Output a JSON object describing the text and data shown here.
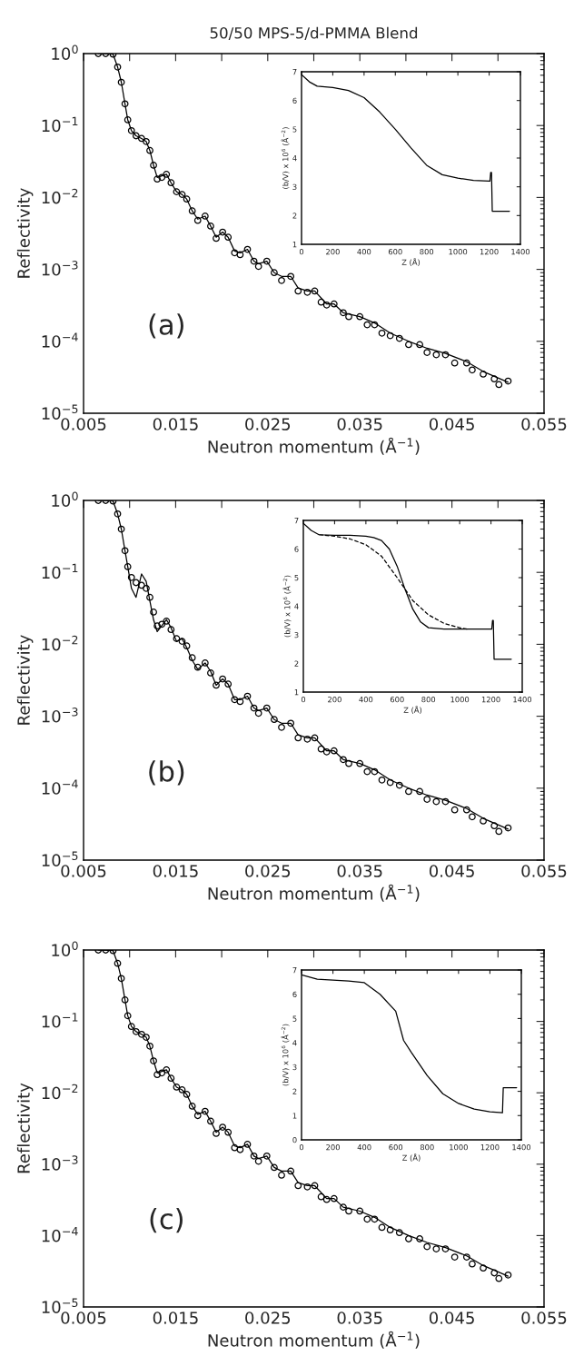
{
  "chart_data": [
    {
      "type": "scatter",
      "title": "50/50 MPS-5/d-PMMA Blend",
      "xlabel": "Neutron momentum (Å$^{−1}$)",
      "ylabel": "Reflectivity",
      "log": "y",
      "xlim": [
        0.005,
        0.055
      ],
      "ylim": [
        1e-05,
        1
      ],
      "xticks": [
        0.005,
        {
          "value": 0.01,
          "label": null
        },
        0.015,
        {
          "value": 0.02,
          "label": null
        },
        0.025,
        {
          "value": 0.03,
          "label": null
        },
        0.035,
        {
          "value": 0.04,
          "label": null
        },
        0.045,
        {
          "value": 0.05,
          "label": null
        },
        0.055
      ],
      "yticks": [
        {
          "value": 1e-05,
          "label": "10$^{−5}$"
        },
        {
          "value": 0.0001,
          "label": "10$^{−4}$"
        },
        {
          "value": 0.001,
          "label": "10$^{−3}$"
        },
        {
          "value": 0.01,
          "label": "10$^{−2}$"
        },
        {
          "value": 0.1,
          "label": "10$^{−1}$"
        },
        {
          "value": 1,
          "label": "10$^{0}$"
        }
      ],
      "annotations": [
        "(a)"
      ],
      "series": [
        {
          "color": "#000000",
          "marker": "circle",
          "x": [
            0.0066,
            0.0074,
            0.0082,
            0.0087,
            0.0091,
            0.0095,
            0.0098,
            0.0102,
            0.0107,
            0.0113,
            0.0118,
            0.0122,
            0.0126,
            0.013,
            0.0135,
            0.014,
            0.0145,
            0.0151,
            0.0157,
            0.0162,
            0.0168,
            0.0174,
            0.0182,
            0.0188,
            0.0194,
            0.0201,
            0.0207,
            0.0214,
            0.022,
            0.0228,
            0.0235,
            0.024,
            0.0249,
            0.0257,
            0.0265,
            0.0275,
            0.0283,
            0.0293,
            0.0301,
            0.0308,
            0.0314,
            0.0322,
            0.0332,
            0.0338,
            0.035,
            0.0358,
            0.0366,
            0.0374,
            0.0383,
            0.0393,
            0.0403,
            0.0415,
            0.0423,
            0.0433,
            0.0443,
            0.0453,
            0.0466,
            0.0472,
            0.0484,
            0.0496,
            0.0501,
            0.0511
          ],
          "values": [
            1.0,
            1.0,
            0.98,
            0.65,
            0.4,
            0.2,
            0.12,
            0.085,
            0.072,
            0.066,
            0.06,
            0.045,
            0.028,
            0.018,
            0.019,
            0.021,
            0.016,
            0.012,
            0.011,
            0.0095,
            0.0065,
            0.0048,
            0.0055,
            0.004,
            0.0027,
            0.0033,
            0.0028,
            0.0017,
            0.0016,
            0.0019,
            0.0013,
            0.0011,
            0.0013,
            0.0009,
            0.0007,
            0.0008,
            0.0005,
            0.00048,
            0.0005,
            0.00035,
            0.00032,
            0.00033,
            0.00025,
            0.00022,
            0.00022,
            0.00017,
            0.00017,
            0.00013,
            0.00012,
            0.00011,
            9e-05,
            9e-05,
            7e-05,
            6.5e-05,
            6.5e-05,
            5e-05,
            5e-05,
            4e-05,
            3.5e-05,
            3e-05,
            2.5e-05,
            2.8e-05
          ]
        },
        {
          "type": "line",
          "color": "#000000",
          "line_style": "solid",
          "x": [
            0.0066,
            0.0082,
            0.0087,
            0.0091,
            0.0095,
            0.0098,
            0.0102,
            0.0107,
            0.0113,
            0.0118,
            0.0122,
            0.0126,
            0.013,
            0.014,
            0.0145,
            0.0151,
            0.0157,
            0.0162,
            0.0168,
            0.0174,
            0.0182,
            0.0188,
            0.0194,
            0.0201,
            0.0207,
            0.0214,
            0.022,
            0.0228,
            0.0235,
            0.024,
            0.0249,
            0.0257,
            0.0265,
            0.0275,
            0.0283,
            0.0293,
            0.0301,
            0.0314,
            0.0322,
            0.0332,
            0.035,
            0.0366,
            0.0383,
            0.0403,
            0.0423,
            0.0443,
            0.0466,
            0.0484,
            0.0511
          ],
          "values": [
            1.0,
            0.98,
            0.65,
            0.4,
            0.2,
            0.12,
            0.085,
            0.072,
            0.066,
            0.06,
            0.045,
            0.028,
            0.019,
            0.021,
            0.016,
            0.012,
            0.011,
            0.0095,
            0.0065,
            0.005,
            0.0055,
            0.004,
            0.0028,
            0.0033,
            0.0028,
            0.0018,
            0.0017,
            0.0019,
            0.0013,
            0.0012,
            0.0013,
            0.0009,
            0.0008,
            0.0008,
            0.00055,
            0.0005,
            0.0005,
            0.00033,
            0.00033,
            0.00025,
            0.00022,
            0.00018,
            0.00013,
            0.0001,
            8e-05,
            6.8e-05,
            5.2e-05,
            3.8e-05,
            2.7e-05
          ]
        }
      ]
    },
    {
      "type": "line",
      "xlabel": "Z (Å)",
      "ylabel": "(b/V) x 10$^{6}$ (Å$^{−2}$)",
      "xlim": [
        0,
        1400
      ],
      "ylim": [
        1,
        7
      ],
      "xticks": [
        0,
        200,
        400,
        600,
        800,
        1000,
        1200,
        1400
      ],
      "yticks": [
        1,
        2,
        3,
        4,
        5,
        6,
        7
      ],
      "series": [
        {
          "color": "#000000",
          "line_style": "solid",
          "x": [
            0,
            50,
            100,
            200,
            300,
            400,
            500,
            600,
            700,
            800,
            900,
            1000,
            1100,
            1200,
            1205,
            1210,
            1215,
            1220,
            1330
          ],
          "values": [
            6.9,
            6.65,
            6.5,
            6.45,
            6.35,
            6.1,
            5.6,
            5.0,
            4.35,
            3.75,
            3.42,
            3.3,
            3.22,
            3.2,
            3.2,
            3.5,
            3.5,
            2.15,
            2.15
          ]
        }
      ]
    },
    {
      "type": "scatter",
      "xlabel": "Neutron momentum (Å$^{−1}$)",
      "ylabel": "Reflectivity",
      "log": "y",
      "xlim": [
        0.005,
        0.055
      ],
      "ylim": [
        1e-05,
        1
      ],
      "xticks": [
        0.005,
        {
          "value": 0.01,
          "label": null
        },
        0.015,
        {
          "value": 0.02,
          "label": null
        },
        0.025,
        {
          "value": 0.03,
          "label": null
        },
        0.035,
        {
          "value": 0.04,
          "label": null
        },
        0.045,
        {
          "value": 0.05,
          "label": null
        },
        0.055
      ],
      "yticks": [
        {
          "value": 1e-05,
          "label": "10$^{−5}$"
        },
        {
          "value": 0.0001,
          "label": "10$^{−4}$"
        },
        {
          "value": 0.001,
          "label": "10$^{−3}$"
        },
        {
          "value": 0.01,
          "label": "10$^{−2}$"
        },
        {
          "value": 0.1,
          "label": "10$^{−1}$"
        },
        {
          "value": 1,
          "label": "10$^{0}$"
        }
      ],
      "annotations": [
        "(b)"
      ],
      "series": [
        {
          "color": "#000000",
          "marker": "circle",
          "x": [
            0.0066,
            0.0074,
            0.0082,
            0.0087,
            0.0091,
            0.0095,
            0.0098,
            0.0102,
            0.0107,
            0.0113,
            0.0118,
            0.0122,
            0.0126,
            0.013,
            0.0135,
            0.014,
            0.0145,
            0.0151,
            0.0157,
            0.0162,
            0.0168,
            0.0174,
            0.0182,
            0.0188,
            0.0194,
            0.0201,
            0.0207,
            0.0214,
            0.022,
            0.0228,
            0.0235,
            0.024,
            0.0249,
            0.0257,
            0.0265,
            0.0275,
            0.0283,
            0.0293,
            0.0301,
            0.0308,
            0.0314,
            0.0322,
            0.0332,
            0.0338,
            0.035,
            0.0358,
            0.0366,
            0.0374,
            0.0383,
            0.0393,
            0.0403,
            0.0415,
            0.0423,
            0.0433,
            0.0443,
            0.0453,
            0.0466,
            0.0472,
            0.0484,
            0.0496,
            0.0501,
            0.0511
          ],
          "values": [
            1.0,
            1.0,
            0.98,
            0.65,
            0.4,
            0.2,
            0.12,
            0.085,
            0.072,
            0.066,
            0.06,
            0.045,
            0.028,
            0.018,
            0.019,
            0.021,
            0.016,
            0.012,
            0.011,
            0.0095,
            0.0065,
            0.0048,
            0.0055,
            0.004,
            0.0027,
            0.0033,
            0.0028,
            0.0017,
            0.0016,
            0.0019,
            0.0013,
            0.0011,
            0.0013,
            0.0009,
            0.0007,
            0.0008,
            0.0005,
            0.00048,
            0.0005,
            0.00035,
            0.00032,
            0.00033,
            0.00025,
            0.00022,
            0.00022,
            0.00017,
            0.00017,
            0.00013,
            0.00012,
            0.00011,
            9e-05,
            9e-05,
            7e-05,
            6.5e-05,
            6.5e-05,
            5e-05,
            5e-05,
            4e-05,
            3.5e-05,
            3e-05,
            2.5e-05,
            2.8e-05
          ]
        },
        {
          "type": "line",
          "color": "#000000",
          "line_style": "solid",
          "x": [
            0.0066,
            0.0082,
            0.0087,
            0.0091,
            0.0095,
            0.0098,
            0.0102,
            0.0107,
            0.0113,
            0.0118,
            0.0122,
            0.0126,
            0.013,
            0.014,
            0.0145,
            0.0151,
            0.0157,
            0.0162,
            0.0168,
            0.0174,
            0.0182,
            0.0188,
            0.0194,
            0.0201,
            0.0207,
            0.0214,
            0.022,
            0.0228,
            0.0235,
            0.024,
            0.0249,
            0.0257,
            0.0265,
            0.0275,
            0.0283,
            0.0293,
            0.0301,
            0.0314,
            0.0322,
            0.0332,
            0.035,
            0.0366,
            0.0383,
            0.0403,
            0.0423,
            0.0443,
            0.0466,
            0.0484,
            0.0511
          ],
          "values": [
            1.0,
            0.98,
            0.65,
            0.4,
            0.2,
            0.12,
            0.06,
            0.045,
            0.095,
            0.075,
            0.04,
            0.022,
            0.015,
            0.022,
            0.017,
            0.011,
            0.012,
            0.009,
            0.006,
            0.0045,
            0.0055,
            0.0042,
            0.0027,
            0.0033,
            0.0028,
            0.0017,
            0.0017,
            0.0019,
            0.0013,
            0.0012,
            0.0013,
            0.0009,
            0.0008,
            0.0008,
            0.00055,
            0.0005,
            0.0005,
            0.00033,
            0.00033,
            0.00025,
            0.00022,
            0.00018,
            0.00013,
            0.0001,
            8e-05,
            6.8e-05,
            5.2e-05,
            3.8e-05,
            2.7e-05
          ]
        }
      ]
    },
    {
      "type": "line",
      "xlabel": "Z (Å)",
      "ylabel": "(b/V) x 10$^{6}$ (Å$^{−2}$)",
      "xlim": [
        0,
        1400
      ],
      "ylim": [
        1,
        7
      ],
      "xticks": [
        0,
        200,
        400,
        600,
        800,
        1000,
        1200,
        1400
      ],
      "yticks": [
        1,
        2,
        3,
        4,
        5,
        6,
        7
      ],
      "series": [
        {
          "color": "#000000",
          "line_style": "solid",
          "x": [
            0,
            50,
            100,
            200,
            300,
            400,
            450,
            500,
            550,
            600,
            650,
            700,
            750,
            800,
            900,
            1000,
            1100,
            1200,
            1205,
            1210,
            1215,
            1220,
            1330
          ],
          "values": [
            6.9,
            6.65,
            6.5,
            6.48,
            6.48,
            6.45,
            6.4,
            6.3,
            6.0,
            5.4,
            4.6,
            3.9,
            3.45,
            3.25,
            3.2,
            3.2,
            3.2,
            3.2,
            3.2,
            3.5,
            3.5,
            2.15,
            2.15
          ]
        },
        {
          "color": "#000000",
          "line_style": "dashed",
          "x": [
            100,
            200,
            300,
            400,
            500,
            600,
            650,
            700,
            800,
            900,
            1000,
            1050
          ],
          "values": [
            6.5,
            6.45,
            6.35,
            6.15,
            5.75,
            5.0,
            4.6,
            4.2,
            3.7,
            3.4,
            3.25,
            3.2
          ]
        }
      ]
    },
    {
      "type": "scatter",
      "xlabel": "Neutron momentum (Å$^{−1}$)",
      "ylabel": "Reflectivity",
      "log": "y",
      "xlim": [
        0.005,
        0.055
      ],
      "ylim": [
        1e-05,
        1
      ],
      "xticks": [
        0.005,
        {
          "value": 0.01,
          "label": null
        },
        0.015,
        {
          "value": 0.02,
          "label": null
        },
        0.025,
        {
          "value": 0.03,
          "label": null
        },
        0.035,
        {
          "value": 0.04,
          "label": null
        },
        0.045,
        {
          "value": 0.05,
          "label": null
        },
        0.055
      ],
      "yticks": [
        {
          "value": 1e-05,
          "label": "10$^{−5}$"
        },
        {
          "value": 0.0001,
          "label": "10$^{−4}$"
        },
        {
          "value": 0.001,
          "label": "10$^{−3}$"
        },
        {
          "value": 0.01,
          "label": "10$^{−2}$"
        },
        {
          "value": 0.1,
          "label": "10$^{−1}$"
        },
        {
          "value": 1,
          "label": "10$^{0}$"
        }
      ],
      "annotations": [
        "(c)"
      ],
      "series": [
        {
          "color": "#000000",
          "marker": "circle",
          "x": [
            0.0066,
            0.0074,
            0.0082,
            0.0087,
            0.0091,
            0.0095,
            0.0098,
            0.0102,
            0.0107,
            0.0113,
            0.0118,
            0.0122,
            0.0126,
            0.013,
            0.0135,
            0.014,
            0.0145,
            0.0151,
            0.0157,
            0.0162,
            0.0168,
            0.0174,
            0.0182,
            0.0188,
            0.0194,
            0.0201,
            0.0207,
            0.0214,
            0.022,
            0.0228,
            0.0235,
            0.024,
            0.0249,
            0.0257,
            0.0265,
            0.0275,
            0.0283,
            0.0293,
            0.0301,
            0.0308,
            0.0314,
            0.0322,
            0.0332,
            0.0338,
            0.035,
            0.0358,
            0.0366,
            0.0374,
            0.0383,
            0.0393,
            0.0403,
            0.0415,
            0.0423,
            0.0433,
            0.0443,
            0.0453,
            0.0466,
            0.0472,
            0.0484,
            0.0496,
            0.0501,
            0.0511
          ],
          "values": [
            1.0,
            1.0,
            0.98,
            0.65,
            0.4,
            0.2,
            0.12,
            0.085,
            0.072,
            0.066,
            0.06,
            0.045,
            0.028,
            0.018,
            0.019,
            0.021,
            0.016,
            0.012,
            0.011,
            0.0095,
            0.0065,
            0.0048,
            0.0055,
            0.004,
            0.0027,
            0.0033,
            0.0028,
            0.0017,
            0.0016,
            0.0019,
            0.0013,
            0.0011,
            0.0013,
            0.0009,
            0.0007,
            0.0008,
            0.0005,
            0.00048,
            0.0005,
            0.00035,
            0.00032,
            0.00033,
            0.00025,
            0.00022,
            0.00022,
            0.00017,
            0.00017,
            0.00013,
            0.00012,
            0.00011,
            9e-05,
            9e-05,
            7e-05,
            6.5e-05,
            6.5e-05,
            5e-05,
            5e-05,
            4e-05,
            3.5e-05,
            3e-05,
            2.5e-05,
            2.8e-05
          ]
        },
        {
          "type": "line",
          "color": "#000000",
          "line_style": "solid",
          "x": [
            0.0066,
            0.0082,
            0.0087,
            0.0091,
            0.0095,
            0.0098,
            0.0102,
            0.0107,
            0.0113,
            0.0118,
            0.0122,
            0.0126,
            0.013,
            0.014,
            0.0145,
            0.0151,
            0.0157,
            0.0162,
            0.0168,
            0.0174,
            0.0182,
            0.0188,
            0.0194,
            0.0201,
            0.0207,
            0.0214,
            0.022,
            0.0228,
            0.0235,
            0.024,
            0.0249,
            0.0257,
            0.0265,
            0.0275,
            0.0283,
            0.0293,
            0.0301,
            0.0314,
            0.0322,
            0.0332,
            0.035,
            0.0366,
            0.0383,
            0.0403,
            0.0423,
            0.0443,
            0.0466,
            0.0484,
            0.0511
          ],
          "values": [
            1.0,
            0.98,
            0.65,
            0.4,
            0.2,
            0.12,
            0.085,
            0.072,
            0.066,
            0.06,
            0.045,
            0.028,
            0.019,
            0.021,
            0.016,
            0.012,
            0.011,
            0.0095,
            0.0065,
            0.005,
            0.0055,
            0.004,
            0.0028,
            0.0033,
            0.0028,
            0.0018,
            0.0017,
            0.0019,
            0.0013,
            0.0012,
            0.0013,
            0.0009,
            0.0008,
            0.0008,
            0.00055,
            0.0005,
            0.0005,
            0.00033,
            0.00033,
            0.00025,
            0.00022,
            0.00018,
            0.00013,
            0.0001,
            8e-05,
            6.8e-05,
            5.2e-05,
            3.8e-05,
            2.7e-05
          ]
        }
      ]
    },
    {
      "type": "line",
      "xlabel": "Z (Å)",
      "ylabel": "(b/V) x 10$^{6}$ (Å$^{−2}$)",
      "xlim": [
        0,
        1400
      ],
      "ylim": [
        0,
        7
      ],
      "xticks": [
        0,
        200,
        400,
        600,
        800,
        1000,
        1200,
        1400
      ],
      "yticks": [
        0,
        1,
        2,
        3,
        4,
        5,
        6,
        7
      ],
      "series": [
        {
          "color": "#000000",
          "line_style": "solid",
          "x": [
            0,
            100,
            200,
            300,
            400,
            500,
            600,
            650,
            700,
            800,
            900,
            1000,
            1100,
            1200,
            1280,
            1285,
            1370
          ],
          "values": [
            6.8,
            6.62,
            6.58,
            6.55,
            6.48,
            6.0,
            5.3,
            4.1,
            3.6,
            2.65,
            1.9,
            1.5,
            1.27,
            1.16,
            1.12,
            2.15,
            2.15
          ]
        }
      ]
    }
  ]
}
